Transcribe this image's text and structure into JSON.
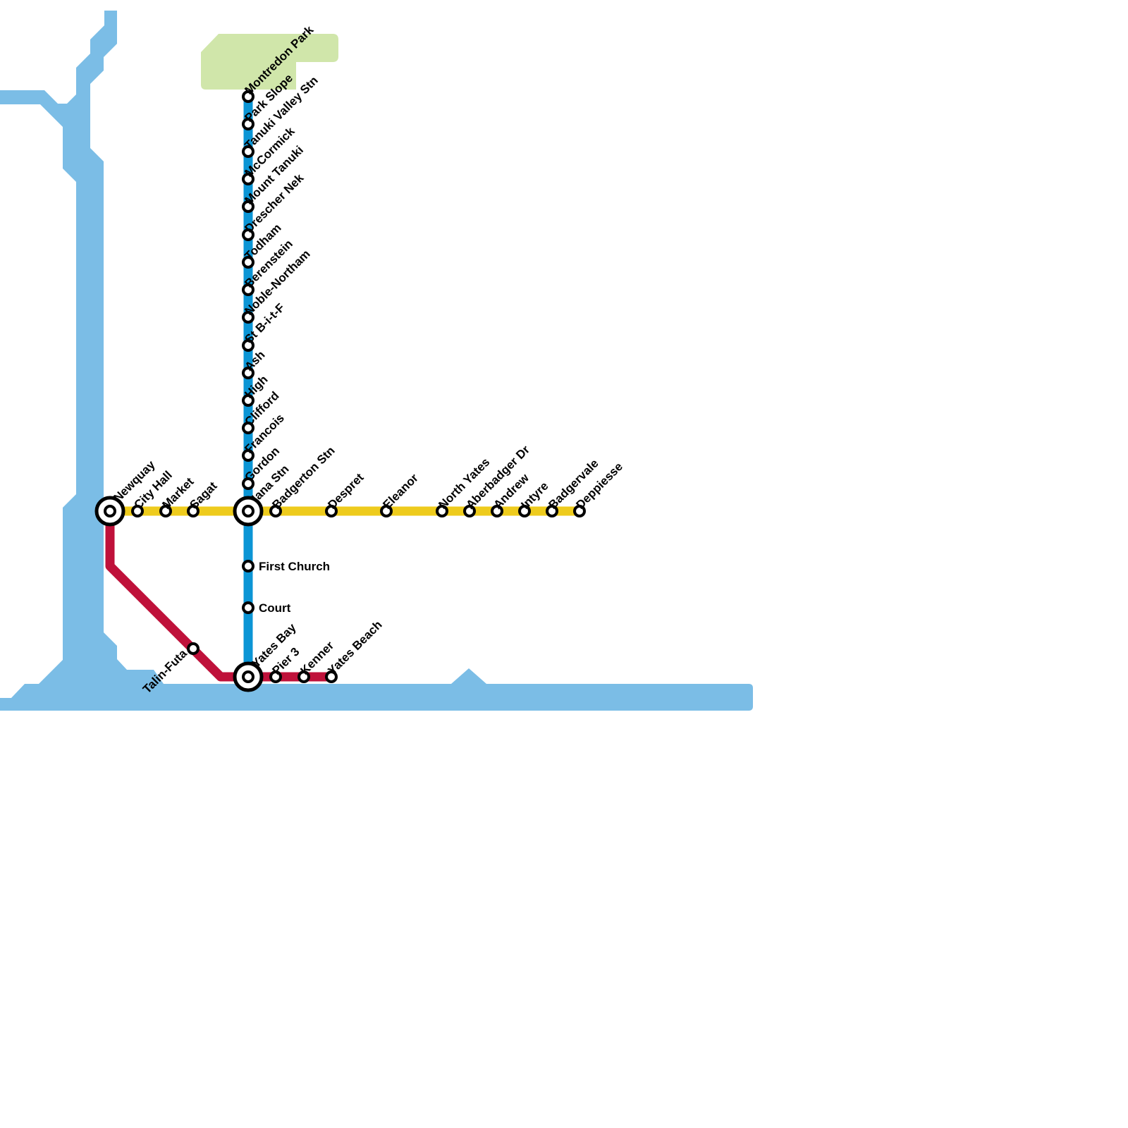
{
  "stations": [
    {
      "name": "Montredon Park"
    },
    {
      "name": "Park Slope"
    },
    {
      "name": "Tanuki Valley Stn"
    },
    {
      "name": "McCormick"
    },
    {
      "name": "Mount Tanuki"
    },
    {
      "name": "Drescher Nek"
    },
    {
      "name": "Todham"
    },
    {
      "name": "Berenstein"
    },
    {
      "name": "Noble-Northam"
    },
    {
      "name": "St B-i-t-F"
    },
    {
      "name": "Ash"
    },
    {
      "name": "High"
    },
    {
      "name": "Clifford"
    },
    {
      "name": "Francois"
    },
    {
      "name": "Gordon"
    },
    {
      "name": "Iana Stn"
    },
    {
      "name": "First Church"
    },
    {
      "name": "Court"
    },
    {
      "name": "Yates Bay"
    },
    {
      "name": "Newquay"
    },
    {
      "name": "City Hall"
    },
    {
      "name": "Market"
    },
    {
      "name": "Sagat"
    },
    {
      "name": "Badgerton Stn"
    },
    {
      "name": "Despret"
    },
    {
      "name": "Eleanor"
    },
    {
      "name": "North Yates"
    },
    {
      "name": "Aberbadger Dr"
    },
    {
      "name": "Andrew"
    },
    {
      "name": "Intyre"
    },
    {
      "name": "Badgervale"
    },
    {
      "name": "Deppiesse"
    },
    {
      "name": "Talin-Futa"
    },
    {
      "name": "Pier 3"
    },
    {
      "name": "Kenner"
    },
    {
      "name": "Yates Beach"
    }
  ]
}
